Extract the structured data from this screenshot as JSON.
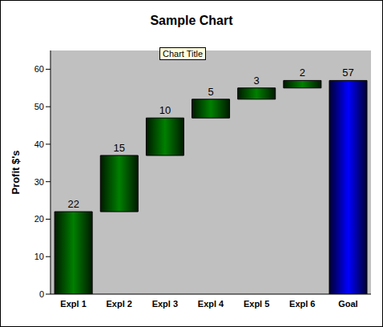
{
  "chart_data": {
    "type": "waterfall",
    "title": "Sample Chart",
    "y_label": "Profit $'s",
    "annotations": [
      "Chart Title"
    ],
    "categories": [
      "Expl 1",
      "Expl 2",
      "Expl 3",
      "Expl 4",
      "Expl 5",
      "Expl 6",
      "Goal"
    ],
    "series": [
      {
        "color": "#008000",
        "values": [
          22,
          15,
          10,
          5,
          3,
          2,
          null
        ]
      },
      {
        "color": "#0000ff",
        "values": [
          null,
          null,
          null,
          null,
          null,
          null,
          57
        ]
      }
    ],
    "ylim": [
      0,
      65
    ],
    "yticks": [
      0,
      10,
      20,
      30,
      40,
      50,
      60
    ],
    "grid": false,
    "data_labels": true
  }
}
